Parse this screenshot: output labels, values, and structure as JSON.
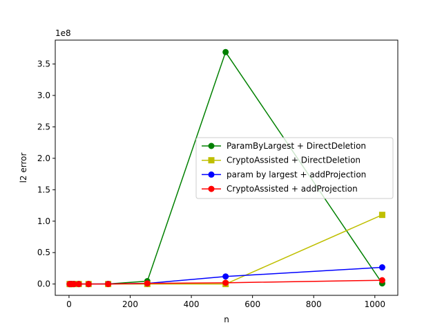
{
  "chart_data": {
    "type": "line",
    "title": "",
    "xlabel": "n",
    "ylabel": "l2 error",
    "y_offset_label": "1e8",
    "xlim": [
      -45,
      1075
    ],
    "ylim": [
      -0.18,
      3.88
    ],
    "y_units": "1e8",
    "x_ticks": [
      0,
      200,
      400,
      600,
      800,
      1000
    ],
    "x_tick_labels": [
      "0",
      "200",
      "400",
      "600",
      "800",
      "1000"
    ],
    "y_ticks": [
      0.0,
      0.5,
      1.0,
      1.5,
      2.0,
      2.5,
      3.0,
      3.5
    ],
    "y_tick_labels": [
      "0.0",
      "0.5",
      "1.0",
      "1.5",
      "2.0",
      "2.5",
      "3.0",
      "3.5"
    ],
    "grid": false,
    "legend_position": "center-right",
    "series": [
      {
        "name": "ParamByLargest + DirectDeletion",
        "color": "#008000",
        "marker": "circle",
        "x": [
          2,
          4,
          8,
          16,
          32,
          64,
          128,
          256,
          512,
          1024
        ],
        "y": [
          0,
          0,
          0,
          0,
          0,
          0,
          0.002,
          0.045,
          3.69,
          0.01
        ]
      },
      {
        "name": "CryptoAssisted + DirectDeletion",
        "color": "#bfbf00",
        "marker": "square",
        "x": [
          2,
          4,
          8,
          16,
          32,
          64,
          128,
          256,
          512,
          1024
        ],
        "y": [
          0,
          0,
          0,
          0,
          0,
          0,
          0,
          0,
          0,
          1.1
        ]
      },
      {
        "name": "param by largest + addProjection",
        "color": "#0000ff",
        "marker": "circle",
        "x": [
          2,
          4,
          8,
          16,
          32,
          64,
          128,
          256,
          512,
          1024
        ],
        "y": [
          0,
          0,
          0,
          0,
          0,
          0,
          0.002,
          0.01,
          0.12,
          0.265
        ]
      },
      {
        "name": "CryptoAssisted + addProjection",
        "color": "#ff0000",
        "marker": "circle",
        "x": [
          2,
          4,
          8,
          16,
          32,
          64,
          128,
          256,
          512,
          1024
        ],
        "y": [
          0,
          0,
          0,
          0,
          0,
          0,
          0,
          0.01,
          0.02,
          0.06
        ]
      }
    ]
  }
}
